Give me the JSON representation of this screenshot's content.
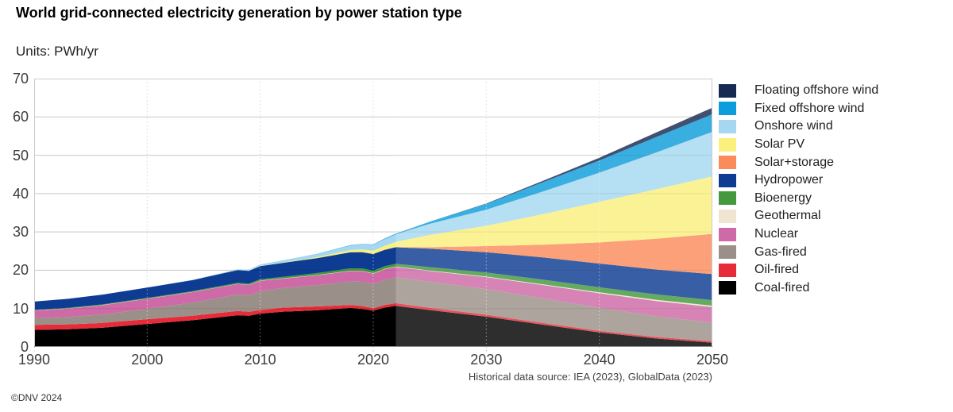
{
  "header": {
    "title": "World grid-connected electricity generation by power station type",
    "units_label": "Units: PWh/yr"
  },
  "footer": {
    "source": "Historical data source: IEA (2023), GlobalData (2023)",
    "copyright": "©DNV 2024"
  },
  "chart_data": {
    "type": "area",
    "stacked": true,
    "title": "World grid-connected electricity generation by power station type",
    "ylabel": "PWh/yr",
    "xlabel": "",
    "ylim": [
      0,
      70
    ],
    "yticks": [
      0,
      10,
      20,
      30,
      40,
      50,
      60,
      70
    ],
    "xticks": [
      1990,
      2000,
      2010,
      2020,
      2030,
      2040,
      2050
    ],
    "grid": true,
    "legend_position": "right",
    "legend_order": "reverse-of-stack (top band first)",
    "forecast_start_x": 2022,
    "forecast_style": "bands lightened after 2022",
    "x": [
      1990,
      1993,
      1996,
      2000,
      2004,
      2008,
      2009,
      2010,
      2012,
      2015,
      2018,
      2019,
      2020,
      2021,
      2022,
      2025,
      2030,
      2035,
      2040,
      2045,
      2050
    ],
    "series": [
      {
        "name": "Coal-fired",
        "color": "#000000",
        "values": [
          4.43,
          4.6,
          5.0,
          5.99,
          6.96,
          8.27,
          8.12,
          8.67,
          9.2,
          9.54,
          10.16,
          9.91,
          9.47,
          10.25,
          10.7,
          9.6,
          7.9,
          5.8,
          3.8,
          2.2,
          1.1
        ]
      },
      {
        "name": "Oil-fired",
        "color": "#e72b38",
        "values": [
          1.33,
          1.28,
          1.25,
          1.24,
          1.18,
          1.1,
          1.03,
          0.97,
          1.06,
          1.02,
          0.8,
          0.75,
          0.63,
          0.66,
          0.72,
          0.6,
          0.5,
          0.45,
          0.4,
          0.4,
          0.4
        ]
      },
      {
        "name": "Gas-fired",
        "color": "#9b9089",
        "values": [
          1.75,
          1.93,
          2.2,
          2.74,
          3.42,
          4.3,
          4.3,
          4.85,
          5.1,
          5.54,
          6.12,
          6.32,
          6.33,
          6.52,
          6.75,
          6.8,
          6.7,
          6.4,
          6.0,
          5.4,
          4.8
        ]
      },
      {
        "name": "Nuclear",
        "color": "#ce6aa7",
        "values": [
          2.0,
          2.19,
          2.41,
          2.59,
          2.74,
          2.73,
          2.7,
          2.76,
          2.46,
          2.57,
          2.71,
          2.79,
          2.67,
          2.8,
          2.68,
          2.8,
          3.1,
          3.5,
          3.8,
          4.0,
          4.1
        ]
      },
      {
        "name": "Geothermal",
        "color": "#f0e5d3",
        "values": [
          0.04,
          0.04,
          0.05,
          0.05,
          0.06,
          0.06,
          0.07,
          0.07,
          0.07,
          0.08,
          0.09,
          0.09,
          0.09,
          0.1,
          0.1,
          0.12,
          0.15,
          0.2,
          0.25,
          0.3,
          0.35
        ]
      },
      {
        "name": "Bioenergy",
        "color": "#43993c",
        "values": [
          0.13,
          0.14,
          0.16,
          0.16,
          0.2,
          0.27,
          0.3,
          0.33,
          0.4,
          0.51,
          0.62,
          0.65,
          0.69,
          0.71,
          0.73,
          0.9,
          1.05,
          1.2,
          1.3,
          1.4,
          1.45
        ]
      },
      {
        "name": "Hydropower",
        "color": "#0d3c92",
        "values": [
          2.14,
          2.38,
          2.55,
          2.7,
          2.86,
          3.29,
          3.33,
          3.44,
          3.65,
          3.9,
          4.19,
          4.22,
          4.36,
          4.27,
          4.33,
          4.8,
          5.3,
          5.8,
          6.2,
          6.5,
          6.8
        ]
      },
      {
        "name": "Solar+storage",
        "color": "#fb8b5b",
        "values": [
          0,
          0,
          0,
          0,
          0,
          0,
          0,
          0,
          0,
          0,
          0,
          0,
          0.01,
          0.01,
          0.03,
          0.4,
          1.6,
          3.3,
          5.5,
          8.0,
          10.5
        ]
      },
      {
        "name": "Solar PV",
        "color": "#fbf07e",
        "values": [
          0,
          0,
          0,
          0.0,
          0.0,
          0.01,
          0.02,
          0.03,
          0.1,
          0.25,
          0.57,
          0.7,
          0.83,
          1.03,
          1.35,
          3.2,
          5.3,
          8.0,
          10.6,
          12.9,
          15.0
        ]
      },
      {
        "name": "Onshore wind",
        "color": "#a5d8f0",
        "values": [
          0.0,
          0.01,
          0.01,
          0.03,
          0.08,
          0.21,
          0.27,
          0.34,
          0.52,
          0.8,
          1.21,
          1.32,
          1.53,
          1.77,
          2.0,
          2.9,
          4.2,
          5.9,
          7.6,
          9.6,
          11.6
        ]
      },
      {
        "name": "Fixed offshore wind",
        "color": "#0d9ddb",
        "values": [
          0,
          0,
          0,
          0,
          0.0,
          0.0,
          0.01,
          0.01,
          0.01,
          0.04,
          0.07,
          0.09,
          0.11,
          0.14,
          0.17,
          0.55,
          1.5,
          2.4,
          3.2,
          4.0,
          4.6
        ]
      },
      {
        "name": "Floating offshore wind",
        "color": "#172a52",
        "values": [
          0,
          0,
          0,
          0,
          0,
          0,
          0,
          0,
          0,
          0,
          0,
          0,
          0,
          0,
          0,
          0.02,
          0.1,
          0.35,
          0.7,
          1.2,
          1.7
        ]
      }
    ]
  }
}
